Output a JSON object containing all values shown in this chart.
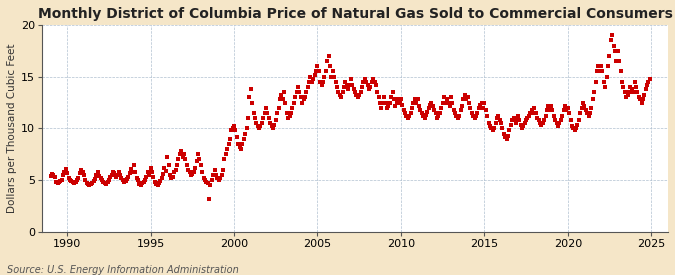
{
  "title": "Monthly District of Columbia Price of Natural Gas Sold to Commercial Consumers",
  "ylabel": "Dollars per Thousand Cubic Feet",
  "source": "Source: U.S. Energy Information Administration",
  "background_color": "#f5e6c8",
  "plot_background_color": "#ffffff",
  "dot_color": "#cc0000",
  "dot_size": 7,
  "dot_marker": "s",
  "xlim": [
    1988.5,
    2026.0
  ],
  "ylim": [
    0,
    20
  ],
  "yticks": [
    0,
    5,
    10,
    15,
    20
  ],
  "xticks": [
    1990,
    1995,
    2000,
    2005,
    2010,
    2015,
    2020,
    2025
  ],
  "title_fontsize": 10,
  "ylabel_fontsize": 7.5,
  "tick_fontsize": 8,
  "source_fontsize": 7,
  "data_points": [
    [
      1989.0,
      5.4
    ],
    [
      1989.08,
      5.6
    ],
    [
      1989.17,
      5.5
    ],
    [
      1989.25,
      5.3
    ],
    [
      1989.33,
      4.8
    ],
    [
      1989.42,
      4.7
    ],
    [
      1989.5,
      4.8
    ],
    [
      1989.58,
      4.9
    ],
    [
      1989.67,
      5.0
    ],
    [
      1989.75,
      5.5
    ],
    [
      1989.83,
      5.8
    ],
    [
      1989.92,
      6.1
    ],
    [
      1990.0,
      5.7
    ],
    [
      1990.08,
      5.2
    ],
    [
      1990.17,
      5.0
    ],
    [
      1990.25,
      4.9
    ],
    [
      1990.33,
      4.8
    ],
    [
      1990.42,
      4.7
    ],
    [
      1990.5,
      4.8
    ],
    [
      1990.58,
      5.0
    ],
    [
      1990.67,
      5.2
    ],
    [
      1990.75,
      5.7
    ],
    [
      1990.83,
      6.0
    ],
    [
      1990.92,
      5.8
    ],
    [
      1991.0,
      5.5
    ],
    [
      1991.08,
      5.0
    ],
    [
      1991.17,
      4.7
    ],
    [
      1991.25,
      4.6
    ],
    [
      1991.33,
      4.5
    ],
    [
      1991.42,
      4.6
    ],
    [
      1991.5,
      4.7
    ],
    [
      1991.58,
      4.9
    ],
    [
      1991.67,
      5.1
    ],
    [
      1991.75,
      5.5
    ],
    [
      1991.83,
      5.8
    ],
    [
      1991.92,
      5.4
    ],
    [
      1992.0,
      5.2
    ],
    [
      1992.08,
      5.0
    ],
    [
      1992.17,
      4.8
    ],
    [
      1992.25,
      4.7
    ],
    [
      1992.33,
      4.6
    ],
    [
      1992.42,
      4.8
    ],
    [
      1992.5,
      5.0
    ],
    [
      1992.58,
      5.3
    ],
    [
      1992.67,
      5.5
    ],
    [
      1992.75,
      5.8
    ],
    [
      1992.83,
      5.7
    ],
    [
      1992.92,
      5.3
    ],
    [
      1993.0,
      5.5
    ],
    [
      1993.08,
      5.8
    ],
    [
      1993.17,
      5.5
    ],
    [
      1993.25,
      5.2
    ],
    [
      1993.33,
      5.0
    ],
    [
      1993.42,
      4.8
    ],
    [
      1993.5,
      4.9
    ],
    [
      1993.58,
      5.1
    ],
    [
      1993.67,
      5.3
    ],
    [
      1993.75,
      5.7
    ],
    [
      1993.83,
      6.1
    ],
    [
      1993.92,
      5.8
    ],
    [
      1994.0,
      6.5
    ],
    [
      1994.08,
      5.8
    ],
    [
      1994.17,
      5.2
    ],
    [
      1994.25,
      5.0
    ],
    [
      1994.33,
      4.6
    ],
    [
      1994.42,
      4.5
    ],
    [
      1994.5,
      4.7
    ],
    [
      1994.58,
      4.8
    ],
    [
      1994.67,
      5.0
    ],
    [
      1994.75,
      5.3
    ],
    [
      1994.83,
      5.8
    ],
    [
      1994.92,
      5.5
    ],
    [
      1995.0,
      6.2
    ],
    [
      1995.08,
      5.8
    ],
    [
      1995.17,
      5.3
    ],
    [
      1995.25,
      4.8
    ],
    [
      1995.33,
      4.6
    ],
    [
      1995.42,
      4.5
    ],
    [
      1995.5,
      4.7
    ],
    [
      1995.58,
      4.9
    ],
    [
      1995.67,
      5.2
    ],
    [
      1995.75,
      5.6
    ],
    [
      1995.83,
      6.2
    ],
    [
      1995.92,
      5.9
    ],
    [
      1996.0,
      7.2
    ],
    [
      1996.08,
      6.5
    ],
    [
      1996.17,
      5.5
    ],
    [
      1996.25,
      5.2
    ],
    [
      1996.33,
      5.3
    ],
    [
      1996.42,
      5.8
    ],
    [
      1996.5,
      6.0
    ],
    [
      1996.58,
      6.5
    ],
    [
      1996.67,
      7.0
    ],
    [
      1996.75,
      7.5
    ],
    [
      1996.83,
      7.8
    ],
    [
      1996.92,
      7.2
    ],
    [
      1997.0,
      7.5
    ],
    [
      1997.08,
      7.0
    ],
    [
      1997.17,
      6.5
    ],
    [
      1997.25,
      6.0
    ],
    [
      1997.33,
      5.8
    ],
    [
      1997.42,
      5.5
    ],
    [
      1997.5,
      5.6
    ],
    [
      1997.58,
      5.8
    ],
    [
      1997.67,
      6.2
    ],
    [
      1997.75,
      6.8
    ],
    [
      1997.83,
      7.5
    ],
    [
      1997.92,
      7.0
    ],
    [
      1998.0,
      6.5
    ],
    [
      1998.08,
      5.8
    ],
    [
      1998.17,
      5.2
    ],
    [
      1998.25,
      5.0
    ],
    [
      1998.33,
      4.8
    ],
    [
      1998.42,
      4.7
    ],
    [
      1998.5,
      3.2
    ],
    [
      1998.58,
      4.5
    ],
    [
      1998.67,
      5.0
    ],
    [
      1998.75,
      5.5
    ],
    [
      1998.83,
      6.0
    ],
    [
      1998.92,
      5.5
    ],
    [
      1999.0,
      5.2
    ],
    [
      1999.08,
      5.0
    ],
    [
      1999.17,
      5.2
    ],
    [
      1999.25,
      5.5
    ],
    [
      1999.33,
      6.0
    ],
    [
      1999.42,
      7.0
    ],
    [
      1999.5,
      7.5
    ],
    [
      1999.58,
      8.0
    ],
    [
      1999.67,
      8.5
    ],
    [
      1999.75,
      9.0
    ],
    [
      1999.83,
      9.8
    ],
    [
      1999.92,
      10.0
    ],
    [
      2000.0,
      10.2
    ],
    [
      2000.08,
      9.8
    ],
    [
      2000.17,
      9.2
    ],
    [
      2000.25,
      8.5
    ],
    [
      2000.33,
      8.2
    ],
    [
      2000.42,
      8.0
    ],
    [
      2000.5,
      8.5
    ],
    [
      2000.58,
      9.0
    ],
    [
      2000.67,
      9.5
    ],
    [
      2000.75,
      10.0
    ],
    [
      2000.83,
      11.0
    ],
    [
      2000.92,
      13.0
    ],
    [
      2001.0,
      13.8
    ],
    [
      2001.08,
      12.5
    ],
    [
      2001.17,
      11.5
    ],
    [
      2001.25,
      11.0
    ],
    [
      2001.33,
      10.5
    ],
    [
      2001.42,
      10.2
    ],
    [
      2001.5,
      10.0
    ],
    [
      2001.58,
      10.2
    ],
    [
      2001.67,
      10.5
    ],
    [
      2001.75,
      11.0
    ],
    [
      2001.83,
      11.5
    ],
    [
      2001.92,
      12.0
    ],
    [
      2002.0,
      11.5
    ],
    [
      2002.08,
      11.0
    ],
    [
      2002.17,
      10.5
    ],
    [
      2002.25,
      10.2
    ],
    [
      2002.33,
      10.0
    ],
    [
      2002.42,
      10.3
    ],
    [
      2002.5,
      10.8
    ],
    [
      2002.58,
      11.5
    ],
    [
      2002.67,
      12.0
    ],
    [
      2002.75,
      12.8
    ],
    [
      2002.83,
      13.2
    ],
    [
      2002.92,
      12.8
    ],
    [
      2003.0,
      13.5
    ],
    [
      2003.08,
      12.5
    ],
    [
      2003.17,
      11.5
    ],
    [
      2003.25,
      11.0
    ],
    [
      2003.33,
      11.2
    ],
    [
      2003.42,
      11.5
    ],
    [
      2003.5,
      12.0
    ],
    [
      2003.58,
      12.5
    ],
    [
      2003.67,
      13.0
    ],
    [
      2003.75,
      13.5
    ],
    [
      2003.83,
      14.0
    ],
    [
      2003.92,
      13.5
    ],
    [
      2004.0,
      13.0
    ],
    [
      2004.08,
      12.5
    ],
    [
      2004.17,
      12.8
    ],
    [
      2004.25,
      13.0
    ],
    [
      2004.33,
      13.5
    ],
    [
      2004.42,
      14.0
    ],
    [
      2004.5,
      14.5
    ],
    [
      2004.58,
      15.0
    ],
    [
      2004.67,
      14.5
    ],
    [
      2004.75,
      14.8
    ],
    [
      2004.83,
      15.2
    ],
    [
      2004.92,
      15.5
    ],
    [
      2005.0,
      16.0
    ],
    [
      2005.08,
      15.5
    ],
    [
      2005.17,
      14.5
    ],
    [
      2005.25,
      14.2
    ],
    [
      2005.33,
      14.5
    ],
    [
      2005.42,
      15.0
    ],
    [
      2005.5,
      15.5
    ],
    [
      2005.58,
      16.5
    ],
    [
      2005.67,
      17.0
    ],
    [
      2005.75,
      16.0
    ],
    [
      2005.83,
      15.0
    ],
    [
      2005.92,
      15.5
    ],
    [
      2006.0,
      15.0
    ],
    [
      2006.08,
      14.5
    ],
    [
      2006.17,
      14.0
    ],
    [
      2006.25,
      13.5
    ],
    [
      2006.33,
      13.2
    ],
    [
      2006.42,
      13.0
    ],
    [
      2006.5,
      13.5
    ],
    [
      2006.58,
      14.0
    ],
    [
      2006.67,
      14.5
    ],
    [
      2006.75,
      14.2
    ],
    [
      2006.83,
      13.8
    ],
    [
      2006.92,
      14.2
    ],
    [
      2007.0,
      14.8
    ],
    [
      2007.08,
      14.2
    ],
    [
      2007.17,
      13.8
    ],
    [
      2007.25,
      13.5
    ],
    [
      2007.33,
      13.2
    ],
    [
      2007.42,
      13.0
    ],
    [
      2007.5,
      13.2
    ],
    [
      2007.58,
      13.5
    ],
    [
      2007.67,
      14.0
    ],
    [
      2007.75,
      14.5
    ],
    [
      2007.83,
      14.8
    ],
    [
      2007.92,
      14.5
    ],
    [
      2008.0,
      14.2
    ],
    [
      2008.08,
      13.8
    ],
    [
      2008.17,
      14.0
    ],
    [
      2008.25,
      14.5
    ],
    [
      2008.33,
      14.8
    ],
    [
      2008.42,
      14.5
    ],
    [
      2008.5,
      14.2
    ],
    [
      2008.58,
      13.5
    ],
    [
      2008.67,
      13.0
    ],
    [
      2008.75,
      12.5
    ],
    [
      2008.83,
      12.0
    ],
    [
      2008.92,
      12.5
    ],
    [
      2009.0,
      13.0
    ],
    [
      2009.08,
      12.5
    ],
    [
      2009.17,
      12.0
    ],
    [
      2009.25,
      12.2
    ],
    [
      2009.33,
      12.5
    ],
    [
      2009.42,
      13.0
    ],
    [
      2009.5,
      13.5
    ],
    [
      2009.58,
      12.8
    ],
    [
      2009.67,
      12.2
    ],
    [
      2009.75,
      12.5
    ],
    [
      2009.83,
      12.8
    ],
    [
      2009.92,
      12.5
    ],
    [
      2010.0,
      12.8
    ],
    [
      2010.08,
      12.3
    ],
    [
      2010.17,
      11.8
    ],
    [
      2010.25,
      11.5
    ],
    [
      2010.33,
      11.2
    ],
    [
      2010.42,
      11.0
    ],
    [
      2010.5,
      11.2
    ],
    [
      2010.58,
      11.5
    ],
    [
      2010.67,
      12.0
    ],
    [
      2010.75,
      12.5
    ],
    [
      2010.83,
      12.8
    ],
    [
      2010.92,
      12.5
    ],
    [
      2011.0,
      12.8
    ],
    [
      2011.08,
      12.2
    ],
    [
      2011.17,
      11.8
    ],
    [
      2011.25,
      11.5
    ],
    [
      2011.33,
      11.2
    ],
    [
      2011.42,
      11.0
    ],
    [
      2011.5,
      11.3
    ],
    [
      2011.58,
      11.6
    ],
    [
      2011.67,
      12.0
    ],
    [
      2011.75,
      12.3
    ],
    [
      2011.83,
      12.5
    ],
    [
      2011.92,
      12.2
    ],
    [
      2012.0,
      11.8
    ],
    [
      2012.08,
      11.5
    ],
    [
      2012.17,
      11.0
    ],
    [
      2012.25,
      11.2
    ],
    [
      2012.33,
      11.5
    ],
    [
      2012.42,
      12.0
    ],
    [
      2012.5,
      12.5
    ],
    [
      2012.58,
      13.0
    ],
    [
      2012.67,
      12.5
    ],
    [
      2012.75,
      12.8
    ],
    [
      2012.83,
      12.5
    ],
    [
      2012.92,
      12.2
    ],
    [
      2013.0,
      13.0
    ],
    [
      2013.08,
      12.5
    ],
    [
      2013.17,
      11.8
    ],
    [
      2013.25,
      11.5
    ],
    [
      2013.33,
      11.2
    ],
    [
      2013.42,
      11.0
    ],
    [
      2013.5,
      11.2
    ],
    [
      2013.58,
      11.8
    ],
    [
      2013.67,
      12.2
    ],
    [
      2013.75,
      12.8
    ],
    [
      2013.83,
      13.2
    ],
    [
      2013.92,
      12.8
    ],
    [
      2014.0,
      13.0
    ],
    [
      2014.08,
      12.5
    ],
    [
      2014.17,
      12.0
    ],
    [
      2014.25,
      11.5
    ],
    [
      2014.33,
      11.2
    ],
    [
      2014.42,
      11.0
    ],
    [
      2014.5,
      11.2
    ],
    [
      2014.58,
      11.5
    ],
    [
      2014.67,
      12.0
    ],
    [
      2014.75,
      12.3
    ],
    [
      2014.83,
      12.5
    ],
    [
      2014.92,
      12.0
    ],
    [
      2015.0,
      12.5
    ],
    [
      2015.08,
      11.8
    ],
    [
      2015.17,
      11.2
    ],
    [
      2015.25,
      10.5
    ],
    [
      2015.33,
      10.2
    ],
    [
      2015.42,
      10.0
    ],
    [
      2015.5,
      9.8
    ],
    [
      2015.58,
      10.0
    ],
    [
      2015.67,
      10.5
    ],
    [
      2015.75,
      11.0
    ],
    [
      2015.83,
      11.2
    ],
    [
      2015.92,
      10.8
    ],
    [
      2016.0,
      10.5
    ],
    [
      2016.08,
      10.0
    ],
    [
      2016.17,
      9.5
    ],
    [
      2016.25,
      9.2
    ],
    [
      2016.33,
      9.0
    ],
    [
      2016.42,
      9.3
    ],
    [
      2016.5,
      9.8
    ],
    [
      2016.58,
      10.3
    ],
    [
      2016.67,
      10.8
    ],
    [
      2016.75,
      11.0
    ],
    [
      2016.83,
      10.8
    ],
    [
      2016.92,
      10.5
    ],
    [
      2017.0,
      11.2
    ],
    [
      2017.08,
      10.8
    ],
    [
      2017.17,
      10.3
    ],
    [
      2017.25,
      10.0
    ],
    [
      2017.33,
      10.2
    ],
    [
      2017.42,
      10.5
    ],
    [
      2017.5,
      10.8
    ],
    [
      2017.58,
      11.0
    ],
    [
      2017.67,
      11.2
    ],
    [
      2017.75,
      11.5
    ],
    [
      2017.83,
      11.8
    ],
    [
      2017.92,
      11.5
    ],
    [
      2018.0,
      12.0
    ],
    [
      2018.08,
      11.5
    ],
    [
      2018.17,
      11.0
    ],
    [
      2018.25,
      10.8
    ],
    [
      2018.33,
      10.5
    ],
    [
      2018.42,
      10.3
    ],
    [
      2018.5,
      10.5
    ],
    [
      2018.58,
      10.8
    ],
    [
      2018.67,
      11.2
    ],
    [
      2018.75,
      11.8
    ],
    [
      2018.83,
      12.2
    ],
    [
      2018.92,
      11.8
    ],
    [
      2019.0,
      12.2
    ],
    [
      2019.08,
      11.8
    ],
    [
      2019.17,
      11.2
    ],
    [
      2019.25,
      10.8
    ],
    [
      2019.33,
      10.5
    ],
    [
      2019.42,
      10.2
    ],
    [
      2019.5,
      10.5
    ],
    [
      2019.58,
      10.8
    ],
    [
      2019.67,
      11.2
    ],
    [
      2019.75,
      11.8
    ],
    [
      2019.83,
      12.2
    ],
    [
      2019.92,
      11.8
    ],
    [
      2020.0,
      12.0
    ],
    [
      2020.08,
      11.5
    ],
    [
      2020.17,
      10.8
    ],
    [
      2020.25,
      10.2
    ],
    [
      2020.33,
      10.0
    ],
    [
      2020.42,
      9.8
    ],
    [
      2020.5,
      10.0
    ],
    [
      2020.58,
      10.3
    ],
    [
      2020.67,
      10.8
    ],
    [
      2020.75,
      11.5
    ],
    [
      2020.83,
      12.0
    ],
    [
      2020.92,
      12.5
    ],
    [
      2021.0,
      12.2
    ],
    [
      2021.08,
      11.8
    ],
    [
      2021.17,
      11.5
    ],
    [
      2021.25,
      11.2
    ],
    [
      2021.33,
      11.5
    ],
    [
      2021.42,
      12.0
    ],
    [
      2021.5,
      12.8
    ],
    [
      2021.58,
      13.5
    ],
    [
      2021.67,
      14.5
    ],
    [
      2021.75,
      15.5
    ],
    [
      2021.83,
      16.0
    ],
    [
      2021.92,
      15.5
    ],
    [
      2022.0,
      16.0
    ],
    [
      2022.08,
      15.5
    ],
    [
      2022.17,
      14.5
    ],
    [
      2022.25,
      14.0
    ],
    [
      2022.33,
      15.0
    ],
    [
      2022.42,
      16.0
    ],
    [
      2022.5,
      17.0
    ],
    [
      2022.58,
      18.5
    ],
    [
      2022.67,
      19.0
    ],
    [
      2022.75,
      18.0
    ],
    [
      2022.83,
      17.5
    ],
    [
      2022.92,
      16.5
    ],
    [
      2023.0,
      17.5
    ],
    [
      2023.08,
      16.5
    ],
    [
      2023.17,
      15.5
    ],
    [
      2023.25,
      14.5
    ],
    [
      2023.33,
      14.0
    ],
    [
      2023.42,
      13.5
    ],
    [
      2023.5,
      13.0
    ],
    [
      2023.58,
      13.2
    ],
    [
      2023.67,
      13.5
    ],
    [
      2023.75,
      14.0
    ],
    [
      2023.83,
      13.8
    ],
    [
      2023.92,
      13.5
    ],
    [
      2024.0,
      14.5
    ],
    [
      2024.08,
      14.0
    ],
    [
      2024.17,
      13.5
    ],
    [
      2024.25,
      13.0
    ],
    [
      2024.33,
      12.8
    ],
    [
      2024.42,
      12.5
    ],
    [
      2024.5,
      12.8
    ],
    [
      2024.58,
      13.2
    ],
    [
      2024.67,
      13.8
    ],
    [
      2024.75,
      14.2
    ],
    [
      2024.83,
      14.5
    ],
    [
      2024.92,
      14.8
    ]
  ]
}
